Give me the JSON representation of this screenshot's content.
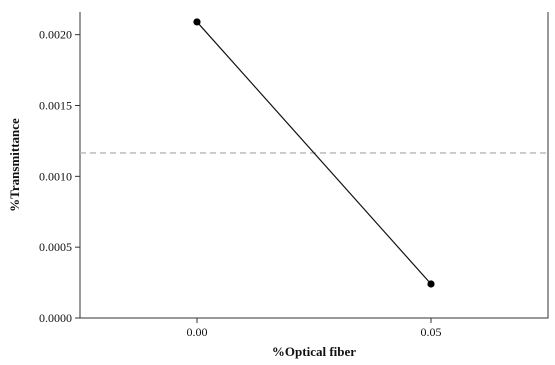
{
  "chart_data": {
    "type": "line",
    "xlabel": "%Optical fiber",
    "ylabel": "%Transmittance",
    "x_tick_labels": [
      "0.00",
      "0.05"
    ],
    "y_tick_labels": [
      "0.0000",
      "0.0005",
      "0.0010",
      "0.0015",
      "0.0020"
    ],
    "xlim": [
      -0.025,
      0.075
    ],
    "ylim": [
      0,
      0.00216
    ],
    "series": [
      {
        "x": [
          0.0,
          0.05
        ],
        "y": [
          0.00209,
          0.00024
        ]
      }
    ],
    "reference_line": {
      "y": 0.001165,
      "style": "dashed",
      "color": "#b5b5b5"
    },
    "grid": false,
    "legend": "none",
    "colors": {
      "line": "#111111",
      "point": "#000000",
      "axis": "#333333"
    }
  }
}
